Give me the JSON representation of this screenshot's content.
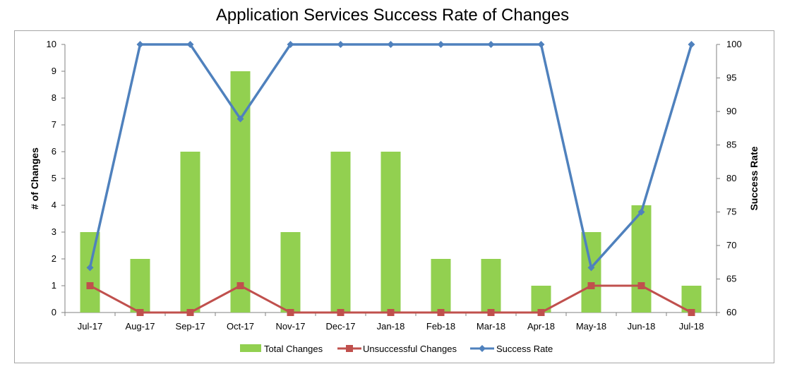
{
  "chart_data": {
    "type": "bar",
    "title": "Application Services Success Rate of Changes",
    "categories": [
      "Jul-17",
      "Aug-17",
      "Sep-17",
      "Oct-17",
      "Nov-17",
      "Dec-17",
      "Jan-18",
      "Feb-18",
      "Mar-18",
      "Apr-18",
      "May-18",
      "Jun-18",
      "Jul-18"
    ],
    "y_left": {
      "label": "# of Changes",
      "range": [
        0,
        10
      ],
      "ticks": [
        "0",
        "1",
        "2",
        "3",
        "4",
        "5",
        "6",
        "7",
        "8",
        "9",
        "10"
      ]
    },
    "y_right": {
      "label": "Success Rate",
      "range": [
        60,
        100
      ],
      "ticks": [
        "60",
        "65",
        "70",
        "75",
        "80",
        "85",
        "90",
        "95",
        "100"
      ]
    },
    "series": [
      {
        "name": "Total Changes",
        "type": "bar",
        "axis": "left",
        "color": "#92d050",
        "values": [
          3,
          2,
          6,
          9,
          3,
          6,
          6,
          2,
          2,
          1,
          3,
          4,
          1
        ]
      },
      {
        "name": "Unsuccessful Changes",
        "type": "line",
        "axis": "left",
        "color": "#c0504d",
        "marker": "square",
        "values": [
          1,
          0,
          0,
          1,
          0,
          0,
          0,
          0,
          0,
          0,
          1,
          1,
          0
        ]
      },
      {
        "name": "Success Rate",
        "type": "line",
        "axis": "right",
        "color": "#4f81bd",
        "marker": "diamond",
        "values": [
          66.7,
          100,
          100,
          88.9,
          100,
          100,
          100,
          100,
          100,
          100,
          66.7,
          75,
          100
        ]
      }
    ],
    "grid": false,
    "legend": "bottom"
  }
}
